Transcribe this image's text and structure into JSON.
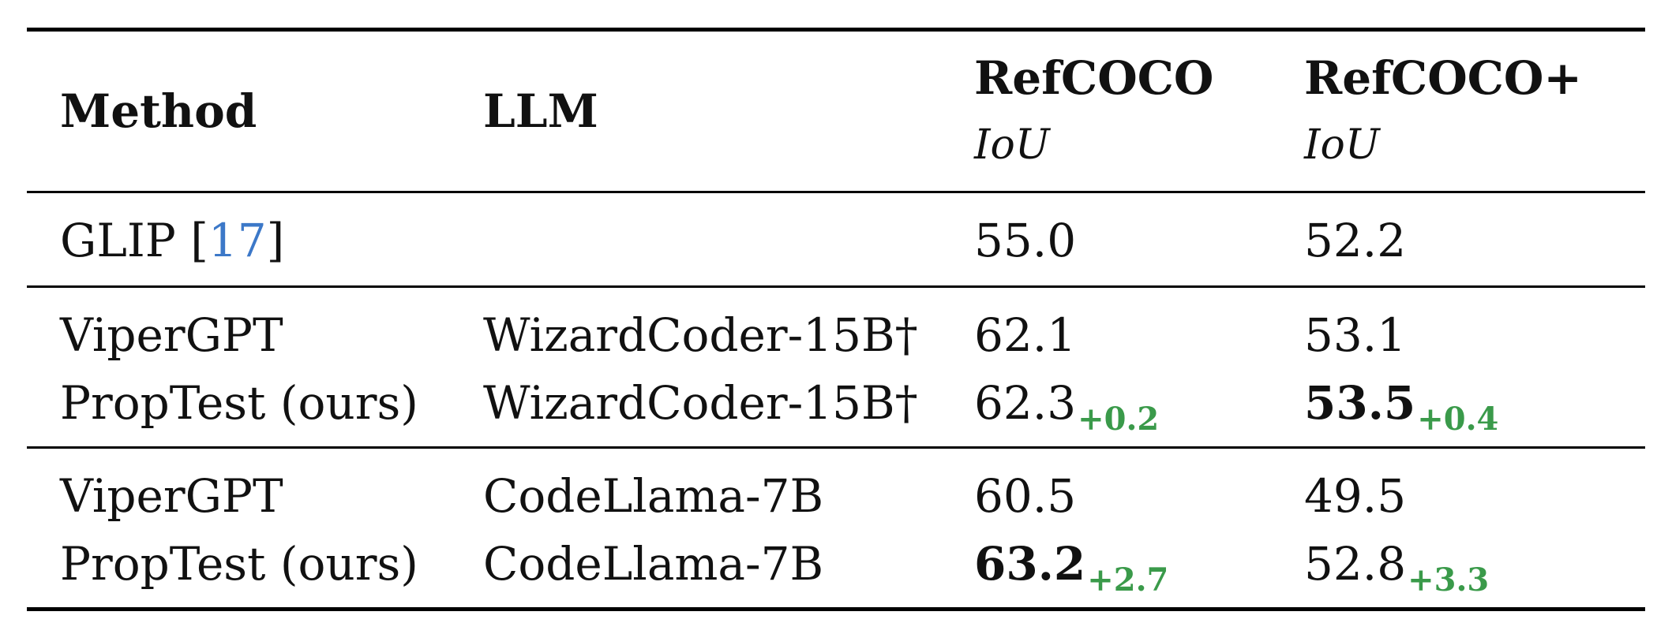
{
  "table": {
    "headers": {
      "method": "Method",
      "llm": "LLM",
      "refcoco": "RefCOCO",
      "refcoco_sub": "IoU",
      "refcocoplus": "RefCOCO+",
      "refcocoplus_sub": "IoU"
    },
    "rows": [
      {
        "method": "GLIP [",
        "ref": "17",
        "method_close": "]",
        "llm": "",
        "refcoco": "55.0",
        "refcoco_delta": "",
        "refcocoplus": "52.2",
        "refcocoplus_delta": ""
      },
      {
        "method": "ViperGPT",
        "llm": "WizardCoder-15B†",
        "refcoco": "62.1",
        "refcoco_delta": "",
        "refcocoplus": "53.1",
        "refcocoplus_delta": ""
      },
      {
        "method": "PropTest (ours)",
        "llm": "WizardCoder-15B†",
        "refcoco": "62.3",
        "refcoco_delta": "+0.2",
        "refcocoplus": "53.5",
        "refcocoplus_delta": "+0.4"
      },
      {
        "method": "ViperGPT",
        "llm": "CodeLlama-7B",
        "refcoco": "60.5",
        "refcoco_delta": "",
        "refcocoplus": "49.5",
        "refcocoplus_delta": ""
      },
      {
        "method": "PropTest (ours)",
        "llm": "CodeLlama-7B",
        "refcoco": "63.2",
        "refcoco_delta": "+2.7",
        "refcocoplus": "52.8",
        "refcocoplus_delta": "+3.3"
      }
    ]
  }
}
